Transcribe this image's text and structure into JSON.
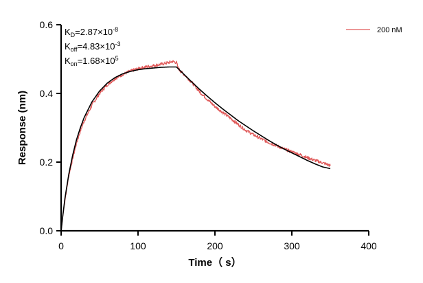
{
  "chart_data": {
    "type": "line",
    "xlabel": "Time（ s）",
    "ylabel": "Response (nm)",
    "xlim": [
      0,
      400
    ],
    "ylim": [
      0,
      0.6
    ],
    "x_ticks": [
      0,
      100,
      200,
      300,
      400
    ],
    "y_ticks": [
      0.0,
      0.2,
      0.4,
      0.6
    ],
    "x_tick_labels": [
      "0",
      "100",
      "200",
      "300",
      "400"
    ],
    "y_tick_labels": [
      "0.0",
      "0.2",
      "0.4",
      "0.6"
    ],
    "grid": false,
    "legend_position": "top-right",
    "annotations": [
      {
        "main": "K",
        "sub": "D",
        "value": "=2.87×10",
        "exp": "-8"
      },
      {
        "main": "K",
        "sub": "off",
        "value": "=4.83×10",
        "exp": "-3"
      },
      {
        "main": "K",
        "sub": "on",
        "value": "=1.68×10",
        "exp": "5"
      }
    ],
    "series": [
      {
        "name": "200 nM",
        "color": "#e05a5a",
        "style": "noisy measured trace",
        "x": [
          0,
          2,
          5,
          10,
          15,
          20,
          25,
          30,
          40,
          50,
          60,
          70,
          80,
          90,
          100,
          110,
          120,
          130,
          140,
          145,
          150,
          152,
          155,
          160,
          170,
          180,
          190,
          200,
          210,
          220,
          230,
          240,
          250,
          260,
          270,
          280,
          290,
          300,
          310,
          320,
          330,
          340,
          350
        ],
        "y": [
          0.0,
          0.04,
          0.09,
          0.16,
          0.21,
          0.255,
          0.29,
          0.32,
          0.365,
          0.4,
          0.425,
          0.443,
          0.455,
          0.465,
          0.472,
          0.477,
          0.481,
          0.485,
          0.49,
          0.493,
          0.49,
          0.475,
          0.465,
          0.455,
          0.432,
          0.405,
          0.383,
          0.362,
          0.345,
          0.328,
          0.31,
          0.293,
          0.28,
          0.268,
          0.257,
          0.248,
          0.238,
          0.23,
          0.222,
          0.213,
          0.205,
          0.198,
          0.19
        ]
      },
      {
        "name": "",
        "color": "#000000",
        "style": "smooth fitted curve",
        "x": [
          0,
          2,
          5,
          10,
          15,
          20,
          25,
          30,
          40,
          50,
          60,
          70,
          80,
          90,
          100,
          110,
          120,
          130,
          140,
          150,
          160,
          170,
          180,
          190,
          200,
          210,
          220,
          230,
          240,
          250,
          260,
          270,
          280,
          290,
          300,
          310,
          320,
          330,
          340,
          350
        ],
        "y": [
          0.0,
          0.04,
          0.095,
          0.165,
          0.22,
          0.265,
          0.3,
          0.33,
          0.375,
          0.407,
          0.43,
          0.446,
          0.457,
          0.464,
          0.469,
          0.472,
          0.474,
          0.476,
          0.477,
          0.477,
          0.455,
          0.433,
          0.412,
          0.392,
          0.373,
          0.355,
          0.338,
          0.321,
          0.306,
          0.291,
          0.277,
          0.263,
          0.25,
          0.238,
          0.227,
          0.216,
          0.205,
          0.195,
          0.186,
          0.181
        ]
      }
    ]
  }
}
